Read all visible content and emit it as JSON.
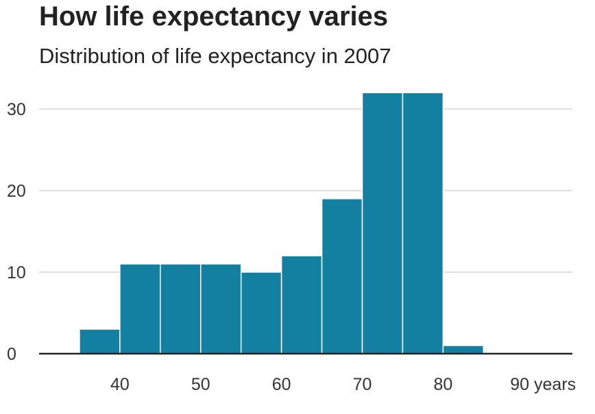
{
  "chart_data": {
    "type": "bar",
    "title": "How life expectancy varies",
    "subtitle": "Distribution of life expectancy in 2007",
    "xlabel": "",
    "ylabel": "",
    "x_unit": "years",
    "bin_edges": [
      35,
      40,
      45,
      50,
      55,
      60,
      65,
      70,
      75,
      80,
      85,
      90
    ],
    "values": [
      3,
      11,
      11,
      11,
      10,
      12,
      19,
      32,
      32,
      1,
      0
    ],
    "x_ticks": [
      40,
      50,
      60,
      70,
      80,
      90
    ],
    "x_tick_labels": [
      "40",
      "50",
      "60",
      "70",
      "80",
      "90 years"
    ],
    "y_ticks": [
      0,
      10,
      20,
      30
    ],
    "y_tick_labels": [
      "0",
      "10",
      "20",
      "30"
    ],
    "ylim": [
      0,
      32
    ],
    "xlim": [
      30,
      96
    ],
    "grid": true,
    "legend": "none",
    "bar_color": "#1380A1",
    "grid_color": "#cbcbcb",
    "axis_color": "#222222"
  }
}
